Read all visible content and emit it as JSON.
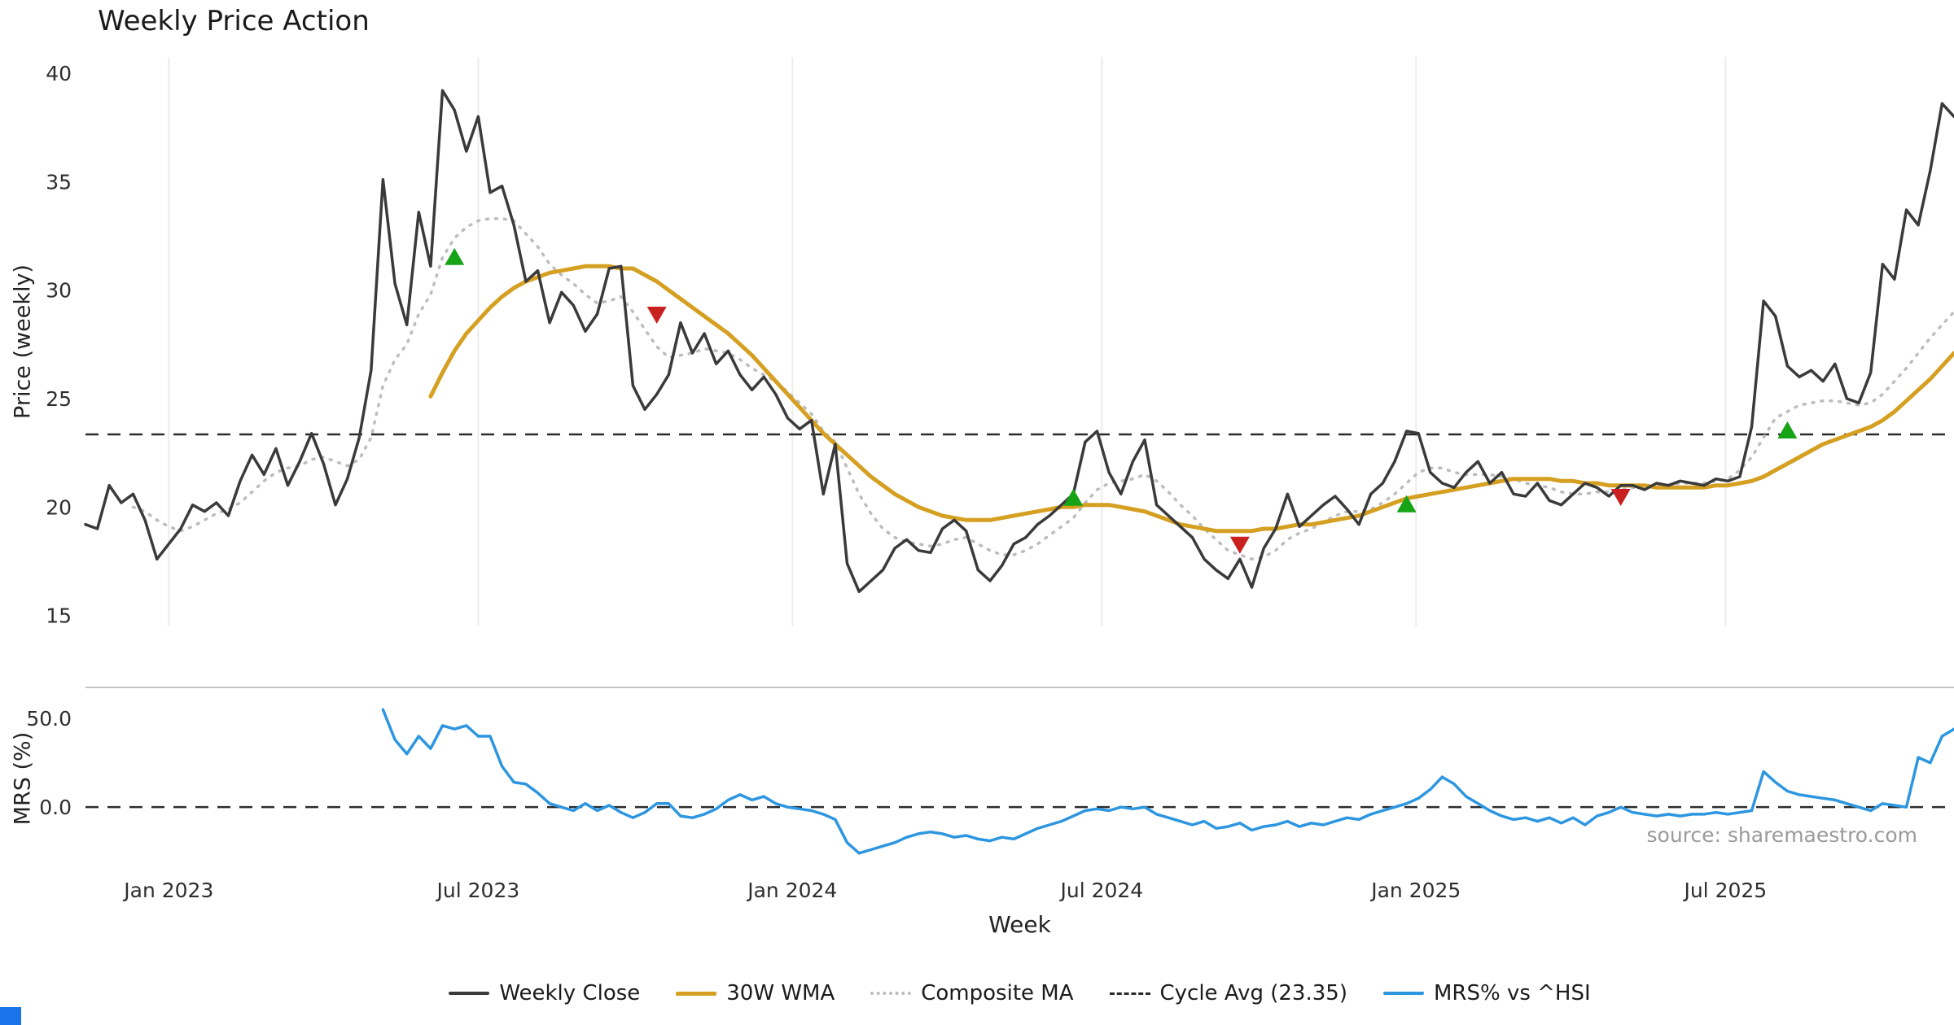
{
  "chart_data": {
    "type": "line",
    "title": "Weekly Price Action",
    "xlabel": "Week",
    "source": "source: sharemaestro.com",
    "series_length": 158,
    "colors": {
      "buy": "#16a316",
      "sell": "#c92020",
      "grid": "#ececec",
      "dashed": "#2b2b2b",
      "panel_border": "#c4c4c4"
    },
    "xticks": {
      "indices": [
        7,
        33,
        59.4,
        85.4,
        111.8,
        137.8
      ],
      "labels": [
        "Jan 2023",
        "Jul 2023",
        "Jan 2024",
        "Jul 2024",
        "Jan 2025",
        "Jul 2025"
      ]
    },
    "panels": [
      {
        "name": "price",
        "ylabel": "Price (weekly)",
        "ylim": [
          14.5,
          40.75
        ],
        "yticks": [
          {
            "v": 40,
            "label": "40"
          },
          {
            "v": 35,
            "label": "35"
          },
          {
            "v": 30,
            "label": "30"
          },
          {
            "v": 25,
            "label": "25"
          },
          {
            "v": 20,
            "label": "20"
          },
          {
            "v": 15,
            "label": "15"
          }
        ],
        "hline": {
          "name": "Cycle Avg (23.35)",
          "value": 23.35
        },
        "signals": [
          {
            "i": 31,
            "price": 31.5,
            "type": "buy"
          },
          {
            "i": 48,
            "price": 28.9,
            "type": "sell"
          },
          {
            "i": 83,
            "price": 20.4,
            "type": "buy"
          },
          {
            "i": 97,
            "price": 18.3,
            "type": "sell"
          },
          {
            "i": 111,
            "price": 20.1,
            "type": "buy"
          },
          {
            "i": 129,
            "price": 20.5,
            "type": "sell"
          },
          {
            "i": 143,
            "price": 23.5,
            "type": "buy"
          }
        ],
        "series": [
          {
            "name": "Weekly Close",
            "color": "#3a3a3a",
            "style": "solid",
            "width": 3.5,
            "start": 0,
            "values": [
              19.2,
              19.0,
              21.0,
              20.2,
              20.6,
              19.4,
              17.6,
              18.3,
              19.0,
              20.1,
              19.8,
              20.2,
              19.6,
              21.2,
              22.4,
              21.5,
              22.7,
              21.0,
              22.1,
              23.4,
              22.0,
              20.1,
              21.3,
              23.2,
              26.3,
              35.1,
              30.3,
              28.4,
              33.6,
              31.1,
              39.2,
              38.3,
              36.4,
              38.0,
              34.5,
              34.8,
              33.0,
              30.4,
              30.9,
              28.5,
              29.9,
              29.3,
              28.1,
              28.9,
              31.0,
              31.1,
              25.6,
              24.5,
              25.2,
              26.1,
              28.5,
              27.1,
              28.0,
              26.6,
              27.2,
              26.1,
              25.4,
              26.0,
              25.2,
              24.1,
              23.6,
              24.0,
              20.6,
              22.9,
              17.4,
              16.1,
              16.6,
              17.1,
              18.1,
              18.5,
              18.0,
              17.9,
              19.0,
              19.4,
              18.9,
              17.1,
              16.6,
              17.3,
              18.3,
              18.6,
              19.2,
              19.6,
              20.1,
              20.6,
              23.0,
              23.5,
              21.6,
              20.6,
              22.1,
              23.1,
              20.1,
              19.6,
              19.1,
              18.6,
              17.6,
              17.1,
              16.7,
              17.6,
              16.3,
              18.1,
              19.0,
              20.6,
              19.1,
              19.6,
              20.1,
              20.5,
              19.9,
              19.2,
              20.6,
              21.1,
              22.1,
              23.5,
              23.4,
              21.6,
              21.1,
              20.9,
              21.6,
              22.1,
              21.1,
              21.6,
              20.6,
              20.5,
              21.1,
              20.3,
              20.1,
              20.6,
              21.1,
              20.9,
              20.5,
              21.0,
              21.0,
              20.8,
              21.1,
              21.0,
              21.2,
              21.1,
              21.0,
              21.3,
              21.2,
              21.4,
              23.7,
              29.5,
              28.8,
              26.5,
              26.0,
              26.3,
              25.8,
              26.6,
              25.0,
              24.8,
              26.2,
              31.2,
              30.5,
              33.7,
              33.0,
              35.5,
              38.6,
              38.0
            ]
          },
          {
            "name": "30W WMA",
            "color": "#d5a021",
            "style": "solid",
            "width": 5,
            "start": 29,
            "values": [
              25.1,
              26.2,
              27.2,
              28.0,
              28.6,
              29.2,
              29.7,
              30.1,
              30.4,
              30.6,
              30.8,
              30.9,
              31.0,
              31.1,
              31.1,
              31.1,
              31.0,
              31.0,
              30.7,
              30.4,
              30.0,
              29.6,
              29.2,
              28.8,
              28.4,
              28.0,
              27.5,
              27.0,
              26.4,
              25.8,
              25.2,
              24.6,
              24.0,
              23.4,
              22.9,
              22.4,
              21.9,
              21.4,
              21.0,
              20.6,
              20.3,
              20.0,
              19.8,
              19.6,
              19.5,
              19.4,
              19.4,
              19.4,
              19.5,
              19.6,
              19.7,
              19.8,
              19.9,
              20.0,
              20.0,
              20.1,
              20.1,
              20.1,
              20.0,
              19.9,
              19.8,
              19.6,
              19.4,
              19.2,
              19.1,
              19.0,
              18.9,
              18.9,
              18.9,
              18.9,
              19.0,
              19.0,
              19.1,
              19.2,
              19.2,
              19.3,
              19.4,
              19.5,
              19.6,
              19.8,
              20.0,
              20.2,
              20.4,
              20.5,
              20.6,
              20.7,
              20.8,
              20.9,
              21.0,
              21.1,
              21.2,
              21.3,
              21.3,
              21.3,
              21.3,
              21.2,
              21.2,
              21.1,
              21.1,
              21.0,
              21.0,
              21.0,
              21.0,
              20.9,
              20.9,
              20.9,
              20.9,
              20.9,
              21.0,
              21.0,
              21.1,
              21.2,
              21.4,
              21.7,
              22.0,
              22.3,
              22.6,
              22.9,
              23.1,
              23.3,
              23.5,
              23.7,
              24.0,
              24.4,
              24.9,
              25.4,
              25.9,
              26.5,
              27.1
            ]
          },
          {
            "name": "Composite MA",
            "color": "#bdbdbd",
            "style": "dotted",
            "width": 3.5,
            "start": 4,
            "values": [
              20.0,
              19.8,
              19.4,
              19.1,
              18.9,
              19.1,
              19.4,
              19.7,
              19.9,
              20.2,
              20.7,
              21.2,
              21.6,
              21.8,
              21.9,
              22.2,
              22.3,
              22.1,
              21.9,
              22.2,
              23.2,
              25.6,
              26.8,
              27.5,
              28.9,
              29.8,
              31.5,
              32.4,
              32.9,
              33.2,
              33.3,
              33.3,
              33.2,
              32.6,
              32.0,
              31.2,
              30.7,
              30.3,
              29.8,
              29.4,
              29.5,
              29.7,
              29.0,
              28.2,
              27.4,
              26.9,
              27.0,
              27.1,
              27.3,
              27.2,
              27.1,
              26.8,
              26.4,
              26.1,
              25.8,
              25.3,
              24.8,
              24.3,
              23.5,
              23.0,
              21.8,
              20.6,
              19.7,
              19.0,
              18.6,
              18.4,
              18.3,
              18.2,
              18.3,
              18.5,
              18.6,
              18.3,
              18.0,
              17.8,
              17.8,
              18.0,
              18.3,
              18.7,
              19.1,
              19.5,
              20.2,
              20.8,
              21.1,
              21.2,
              21.3,
              21.5,
              21.2,
              20.7,
              20.1,
              19.6,
              19.0,
              18.5,
              18.0,
              17.8,
              17.6,
              17.7,
              18.0,
              18.5,
              18.8,
              19.0,
              19.3,
              19.6,
              19.8,
              19.8,
              19.9,
              20.2,
              20.6,
              21.1,
              21.6,
              21.8,
              21.8,
              21.6,
              21.5,
              21.5,
              21.5,
              21.4,
              21.3,
              21.1,
              21.0,
              20.9,
              20.7,
              20.6,
              20.6,
              20.7,
              20.7,
              20.8,
              20.9,
              20.9,
              21.0,
              21.0,
              21.1,
              21.1,
              21.1,
              21.2,
              21.3,
              21.7,
              22.3,
              23.2,
              24.1,
              24.4,
              24.7,
              24.8,
              24.9,
              24.9,
              24.8,
              24.7,
              24.8,
              25.2,
              25.8,
              26.4,
              27.1,
              27.8,
              28.4,
              29.0
            ]
          }
        ]
      },
      {
        "name": "mrs",
        "ylabel": "MRS (%)",
        "ylim": [
          -38,
          67.5
        ],
        "yticks": [
          {
            "v": 50,
            "label": "50.0"
          },
          {
            "v": 0,
            "label": "0.0"
          }
        ],
        "hline": {
          "name": "mrs-zero-line",
          "value": 0
        },
        "signals": [],
        "series": [
          {
            "name": "MRS% vs ^HSI",
            "color": "#2d96e0",
            "style": "solid",
            "width": 3.5,
            "start": 25,
            "values": [
              55,
              38,
              30,
              40,
              33,
              46,
              44,
              46,
              40,
              40,
              23,
              14,
              13,
              8,
              2,
              0,
              -2,
              2,
              -2,
              1,
              -3,
              -6,
              -3,
              2,
              2,
              -5,
              -6,
              -4,
              -1,
              4,
              7,
              4,
              6,
              2,
              0,
              -1,
              -2,
              -4,
              -7,
              -20,
              -26,
              -24,
              -22,
              -20,
              -17,
              -15,
              -14,
              -15,
              -17,
              -16,
              -18,
              -19,
              -17,
              -18,
              -15,
              -12,
              -10,
              -8,
              -5,
              -2,
              -1,
              -2,
              0,
              -1,
              0,
              -4,
              -6,
              -8,
              -10,
              -8,
              -12,
              -11,
              -9,
              -13,
              -11,
              -10,
              -8,
              -11,
              -9,
              -10,
              -8,
              -6,
              -7,
              -4,
              -2,
              0,
              2,
              5,
              10,
              17,
              13,
              6,
              2,
              -2,
              -5,
              -7,
              -6,
              -8,
              -6,
              -9,
              -6,
              -10,
              -5,
              -3,
              0,
              -3,
              -4,
              -5,
              -4,
              -5,
              -4,
              -4,
              -3,
              -4,
              -3,
              -2,
              20,
              14,
              9,
              7,
              6,
              5,
              4,
              2,
              0,
              -2,
              2,
              1,
              0,
              28,
              25,
              40,
              44
            ]
          }
        ]
      }
    ]
  },
  "legend": {
    "items": [
      {
        "label": "Weekly Close",
        "color": "#3a3a3a",
        "style": "solid",
        "width": 4
      },
      {
        "label": "30W WMA",
        "color": "#d5a021",
        "style": "solid",
        "width": 5
      },
      {
        "label": "Composite MA",
        "color": "#bdbdbd",
        "style": "dotted"
      },
      {
        "label": "Cycle Avg (23.35)",
        "color": "#2b2b2b",
        "style": "dashed"
      },
      {
        "label": "MRS% vs ^HSI",
        "color": "#2d96e0",
        "style": "solid",
        "width": 4
      }
    ]
  }
}
